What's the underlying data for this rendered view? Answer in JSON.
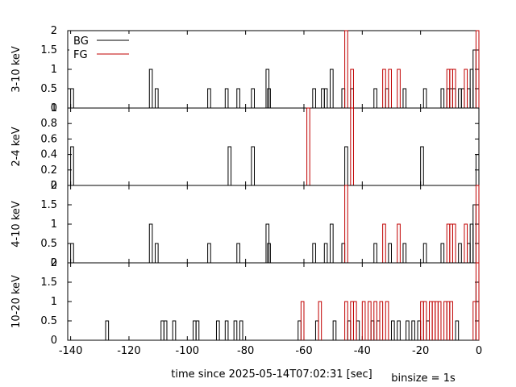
{
  "chart_data": {
    "type": "line",
    "xlabel": "time since 2025-05-14T07:02:31 [sec]",
    "note": "binsize = 1s",
    "xlim": [
      -141,
      0
    ],
    "xticks": [
      -140,
      -120,
      -100,
      -80,
      -60,
      -40,
      -20,
      0
    ],
    "legend": {
      "placement": "top-left",
      "entries": [
        "BG",
        "FG"
      ]
    },
    "colors": {
      "BG": "#000000",
      "FG": "#c00000"
    },
    "panels": [
      {
        "ylabel": "3-10 keV",
        "ylim": [
          0,
          2
        ],
        "yticks": [
          0,
          0.5,
          1,
          1.5,
          2
        ],
        "series": [
          {
            "name": "BG",
            "points": [
              [
                -140,
                0.5
              ],
              [
                -113,
                1
              ],
              [
                -111,
                0.5
              ],
              [
                -93,
                0.5
              ],
              [
                -87,
                0.5
              ],
              [
                -83,
                0.5
              ],
              [
                -78,
                0.5
              ],
              [
                -73,
                1
              ],
              [
                -72.5,
                0.5
              ],
              [
                -57,
                0.5
              ],
              [
                -54,
                0.5
              ],
              [
                -53,
                0.5
              ],
              [
                -51,
                1
              ],
              [
                -47,
                0.5
              ],
              [
                -44,
                0.5
              ],
              [
                -36,
                0.5
              ],
              [
                -32,
                0.5
              ],
              [
                -26,
                0.5
              ],
              [
                -19,
                0.5
              ],
              [
                -13,
                0.5
              ],
              [
                -11,
                0.5
              ],
              [
                -10,
                0.5
              ],
              [
                -9,
                0.5
              ],
              [
                -7,
                0.5
              ],
              [
                -6,
                0.5
              ],
              [
                -4,
                0.5
              ],
              [
                -3,
                1
              ],
              [
                -2,
                1.5
              ]
            ]
          },
          {
            "name": "FG",
            "points": [
              [
                -46,
                2
              ],
              [
                -44,
                1
              ],
              [
                -33,
                1
              ],
              [
                -31,
                1
              ],
              [
                -28,
                1
              ],
              [
                -11,
                1
              ],
              [
                -10,
                1
              ],
              [
                -9,
                1
              ],
              [
                -5,
                1
              ],
              [
                0,
                2
              ]
            ]
          }
        ]
      },
      {
        "ylabel": "2-4 keV",
        "ylim": [
          0,
          1
        ],
        "yticks": [
          0,
          0.2,
          0.4,
          0.6,
          0.8,
          1
        ],
        "series": [
          {
            "name": "BG",
            "points": [
              [
                -140,
                0.5
              ],
              [
                -86,
                0.5
              ],
              [
                -78,
                0.5
              ],
              [
                -46,
                0.5
              ],
              [
                -20,
                0.5
              ],
              [
                0,
                0.4
              ]
            ]
          },
          {
            "name": "FG",
            "points": [
              [
                -59,
                1
              ],
              [
                -44,
                1
              ]
            ]
          }
        ]
      },
      {
        "ylabel": "4-10 keV",
        "ylim": [
          0,
          2
        ],
        "yticks": [
          0,
          0.5,
          1,
          1.5,
          2
        ],
        "series": [
          {
            "name": "BG",
            "points": [
              [
                -140,
                0.5
              ],
              [
                -113,
                1
              ],
              [
                -111,
                0.5
              ],
              [
                -93,
                0.5
              ],
              [
                -83,
                0.5
              ],
              [
                -73,
                1
              ],
              [
                -72.5,
                0.5
              ],
              [
                -57,
                0.5
              ],
              [
                -53,
                0.5
              ],
              [
                -51,
                1
              ],
              [
                -47,
                0.5
              ],
              [
                -36,
                0.5
              ],
              [
                -31,
                0.5
              ],
              [
                -26,
                0.5
              ],
              [
                -19,
                0.5
              ],
              [
                -13,
                0.5
              ],
              [
                -7,
                0.5
              ],
              [
                -4,
                0.5
              ],
              [
                -3,
                1
              ],
              [
                -2,
                1.5
              ]
            ]
          },
          {
            "name": "FG",
            "points": [
              [
                -46,
                2
              ],
              [
                -33,
                1
              ],
              [
                -28,
                1
              ],
              [
                -11,
                1
              ],
              [
                -10,
                1
              ],
              [
                -9,
                1
              ],
              [
                -5,
                1
              ],
              [
                0,
                2
              ]
            ]
          }
        ]
      },
      {
        "ylabel": "10-20 keV",
        "ylim": [
          0,
          2
        ],
        "yticks": [
          0,
          0.5,
          1,
          1.5,
          2
        ],
        "series": [
          {
            "name": "BG",
            "points": [
              [
                -128,
                0.5
              ],
              [
                -109,
                0.5
              ],
              [
                -108,
                0.5
              ],
              [
                -105,
                0.5
              ],
              [
                -98,
                0.5
              ],
              [
                -97,
                0.5
              ],
              [
                -90,
                0.5
              ],
              [
                -87,
                0.5
              ],
              [
                -84,
                0.5
              ],
              [
                -82,
                0.5
              ],
              [
                -62,
                0.5
              ],
              [
                -56,
                0.5
              ],
              [
                -50,
                0.5
              ],
              [
                -45,
                0.5
              ],
              [
                -42,
                0.5
              ],
              [
                -37,
                0.5
              ],
              [
                -35,
                0.5
              ],
              [
                -30,
                0.5
              ],
              [
                -28,
                0.5
              ],
              [
                -25,
                0.5
              ],
              [
                -23,
                0.5
              ],
              [
                -21,
                0.5
              ],
              [
                -18,
                0.5
              ],
              [
                -8,
                0.5
              ],
              [
                -1,
                1
              ],
              [
                0,
                1.5
              ]
            ]
          },
          {
            "name": "FG",
            "points": [
              [
                -61,
                1
              ],
              [
                -55,
                1
              ],
              [
                -46,
                1
              ],
              [
                -44,
                1
              ],
              [
                -43,
                1
              ],
              [
                -40,
                1
              ],
              [
                -38,
                1
              ],
              [
                -36,
                1
              ],
              [
                -34,
                1
              ],
              [
                -32,
                1
              ],
              [
                -20,
                1
              ],
              [
                -19,
                1
              ],
              [
                -17,
                1
              ],
              [
                -16,
                1
              ],
              [
                -15,
                1
              ],
              [
                -14,
                1
              ],
              [
                -12,
                1
              ],
              [
                -11,
                1
              ],
              [
                -10,
                1
              ],
              [
                -2,
                1
              ],
              [
                -1,
                2
              ]
            ]
          }
        ]
      }
    ]
  }
}
